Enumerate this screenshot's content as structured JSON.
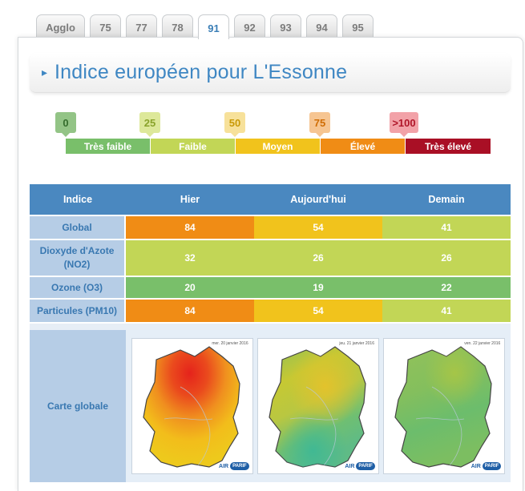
{
  "tabs": [
    {
      "label": "Agglo",
      "active": false
    },
    {
      "label": "75",
      "active": false
    },
    {
      "label": "77",
      "active": false
    },
    {
      "label": "78",
      "active": false
    },
    {
      "label": "91",
      "active": true
    },
    {
      "label": "92",
      "active": false
    },
    {
      "label": "93",
      "active": false
    },
    {
      "label": "94",
      "active": false
    },
    {
      "label": "95",
      "active": false
    }
  ],
  "title": {
    "arrow": "▸",
    "text": "Indice européen pour L'Essonne"
  },
  "scale": {
    "markers": [
      "0",
      "25",
      "50",
      "75",
      ">100"
    ],
    "bands": [
      {
        "label": "Très faible",
        "color": "#79bf6a"
      },
      {
        "label": "Faible",
        "color": "#c2d656"
      },
      {
        "label": "Moyen",
        "color": "#f1c31c"
      },
      {
        "label": "Élevé",
        "color": "#f08c15"
      },
      {
        "label": "Très élevé",
        "color": "#a90f25"
      }
    ]
  },
  "table": {
    "headers": [
      "Indice",
      "Hier",
      "Aujourd'hui",
      "Demain"
    ],
    "rows": [
      {
        "label": "Global",
        "values": [
          "84",
          "54",
          "41"
        ],
        "colors": [
          "#f08c15",
          "#f1c31c",
          "#c2d656"
        ]
      },
      {
        "label_line1": "Dioxyde d'Azote",
        "label_line2": "(NO2)",
        "values": [
          "32",
          "26",
          "26"
        ],
        "colors": [
          "#c2d656",
          "#c2d656",
          "#c2d656"
        ]
      },
      {
        "label": "Ozone (O3)",
        "values": [
          "20",
          "19",
          "22"
        ],
        "colors": [
          "#79bf6a",
          "#79bf6a",
          "#79bf6a"
        ]
      },
      {
        "label": "Particules (PM10)",
        "values": [
          "84",
          "54",
          "41"
        ],
        "colors": [
          "#f08c15",
          "#f1c31c",
          "#c2d656"
        ]
      }
    ],
    "map_label": "Carte globale",
    "maps": [
      {
        "date": "mer. 20 janvier 2016",
        "logo_a": "AIR",
        "logo_b": "PARIF"
      },
      {
        "date": "jeu. 21 janvier 2016",
        "logo_a": "AIR",
        "logo_b": "PARIF"
      },
      {
        "date": "ven. 22 janvier 2016",
        "logo_a": "AIR",
        "logo_b": "PARIF"
      }
    ]
  }
}
